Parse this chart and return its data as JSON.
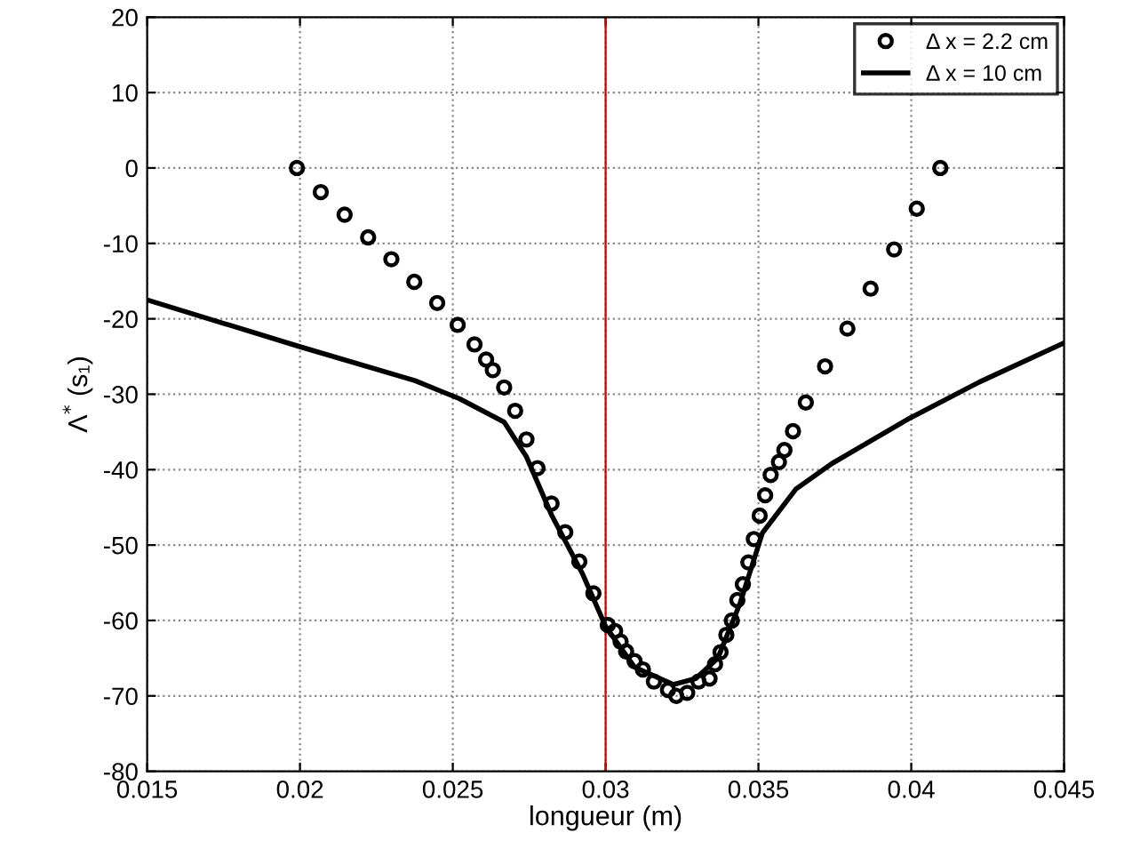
{
  "chart_data": {
    "type": "line",
    "xlabel": "longueur (m)",
    "ylabel": "Λ$^{*}$ (s₁)",
    "xlim": [
      0.015,
      0.045
    ],
    "xticks": [
      0.015,
      0.02,
      0.025,
      0.03,
      0.035,
      0.04,
      0.045
    ],
    "ylim": [
      -80,
      20
    ],
    "yticks": [
      -80,
      -70,
      -60,
      -50,
      -40,
      -30,
      -20,
      -10,
      0,
      10,
      20
    ],
    "grid": true,
    "legend": "top right",
    "ref_lines": [
      {
        "axis": "x",
        "value": 0.03,
        "color": "#cc0000"
      }
    ],
    "series": [
      {
        "name": "Δ x = 2.2 cm",
        "type": "scatter",
        "marker": "circle",
        "color": "#000000",
        "x": [
          0.0199,
          0.02068,
          0.02146,
          0.02223,
          0.02299,
          0.02374,
          0.02449,
          0.02516,
          0.02571,
          0.02609,
          0.02631,
          0.02668,
          0.02704,
          0.02741,
          0.02777,
          0.02823,
          0.02868,
          0.02914,
          0.0296,
          0.03007,
          0.03031,
          0.03049,
          0.03067,
          0.03095,
          0.03122,
          0.03158,
          0.03204,
          0.03231,
          0.03267,
          0.03304,
          0.0334,
          0.03358,
          0.03376,
          0.03395,
          0.03413,
          0.03431,
          0.03449,
          0.03467,
          0.03485,
          0.03504,
          0.03522,
          0.0354,
          0.03567,
          0.03585,
          0.03613,
          0.03655,
          0.03718,
          0.03791,
          0.03867,
          0.03944,
          0.04018,
          0.04095
        ],
        "values": [
          0,
          -3.2,
          -6.2,
          -9.2,
          -12.1,
          -15.1,
          -17.9,
          -20.8,
          -23.4,
          -25.4,
          -26.8,
          -29.1,
          -32.2,
          -36,
          -39.8,
          -44.5,
          -48.3,
          -52.2,
          -56.4,
          -60.6,
          -61.4,
          -62.8,
          -64.1,
          -65.4,
          -66.5,
          -68.1,
          -69.2,
          -70,
          -69.6,
          -68.1,
          -67.7,
          -65.8,
          -64.2,
          -61.9,
          -60,
          -57.3,
          -55.2,
          -52.3,
          -49.2,
          -46.1,
          -43.4,
          -40.7,
          -39,
          -37.4,
          -34.9,
          -31.1,
          -26.3,
          -21.3,
          -16,
          -10.8,
          -5.4,
          0
        ]
      },
      {
        "name": "Δ x = 10 cm",
        "line_style": "solid",
        "color": "#000000",
        "x": [
          0.015,
          0.02,
          0.02376,
          0.02522,
          0.02668,
          0.02741,
          0.02823,
          0.02923,
          0.03,
          0.03095,
          0.03222,
          0.03295,
          0.03367,
          0.0344,
          0.03513,
          0.03622,
          0.0374,
          0.03985,
          0.04222,
          0.045
        ],
        "values": [
          -17.5,
          -23.7,
          -28.2,
          -30.6,
          -33.7,
          -38.3,
          -46,
          -53.7,
          -60.8,
          -66.2,
          -68.5,
          -67.7,
          -65,
          -57.7,
          -48.4,
          -42.6,
          -39.2,
          -33.4,
          -28.4,
          -23.2
        ]
      }
    ]
  }
}
